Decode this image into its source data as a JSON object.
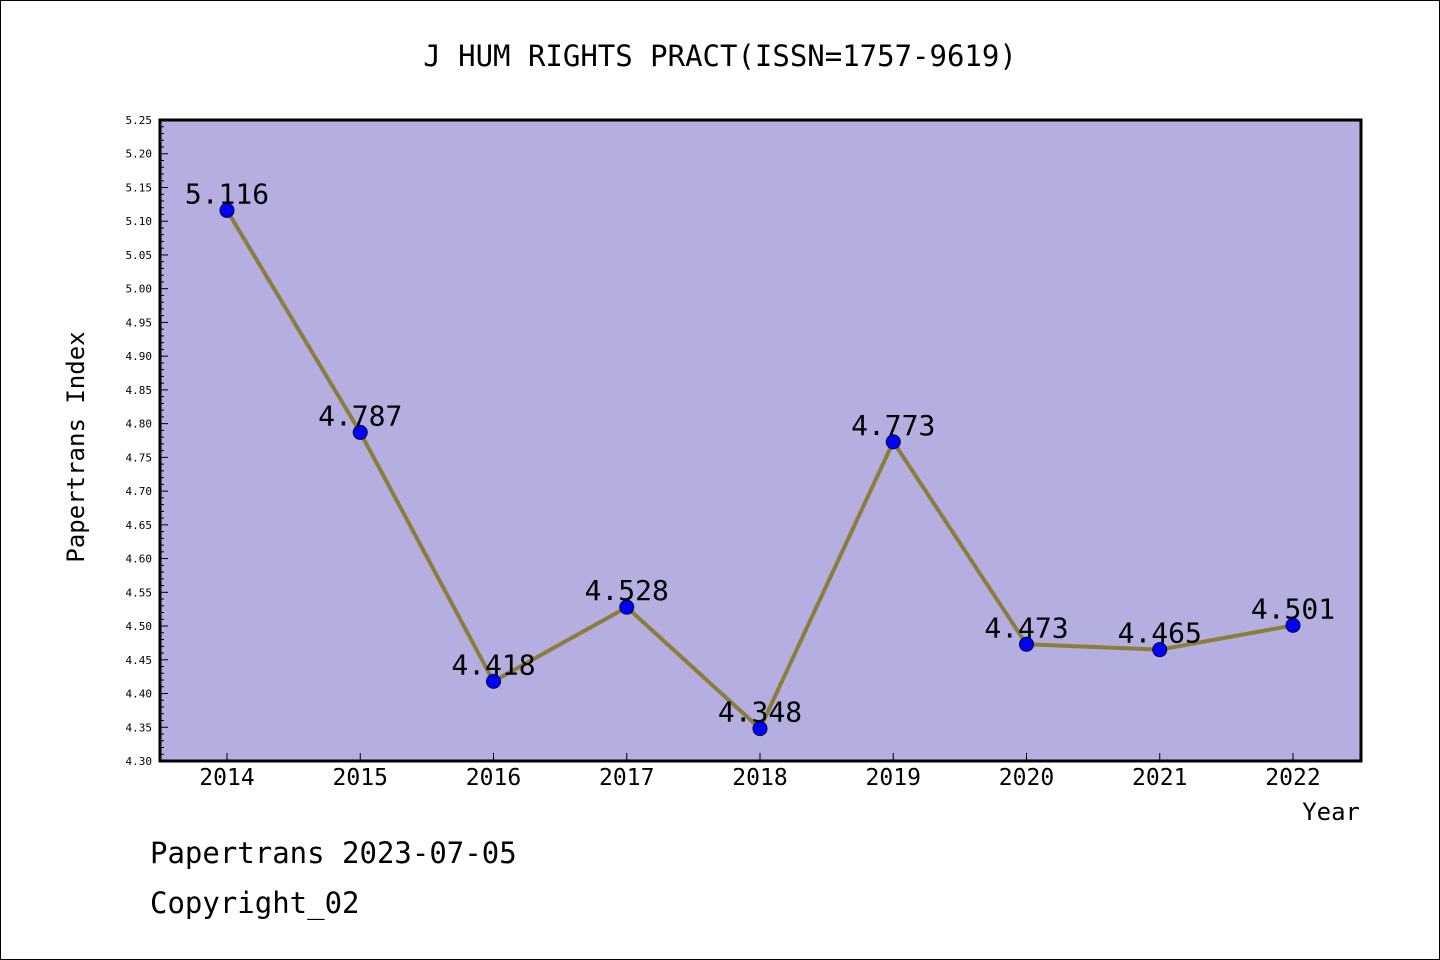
{
  "chart_data": {
    "type": "line",
    "title": "J HUM RIGHTS PRACT(ISSN=1757-9619)",
    "xlabel": "Year",
    "ylabel": "Papertrans Index",
    "categories": [
      "2014",
      "2015",
      "2016",
      "2017",
      "2018",
      "2019",
      "2020",
      "2021",
      "2022"
    ],
    "series": [
      {
        "values": [
          5.116,
          4.787,
          4.418,
          4.528,
          4.348,
          4.773,
          4.473,
          4.465,
          4.501
        ]
      }
    ],
    "data_labels": [
      "5.116",
      "4.787",
      "4.418",
      "4.528",
      "4.348",
      "4.773",
      "4.473",
      "4.465",
      "4.501"
    ],
    "ylim": [
      4.3,
      5.25
    ],
    "y_ticks": [
      "4.30",
      "4.35",
      "4.40",
      "4.45",
      "4.50",
      "4.55",
      "4.60",
      "4.65",
      "4.70",
      "4.75",
      "4.80",
      "4.85",
      "4.90",
      "4.95",
      "5.00",
      "5.05",
      "5.10",
      "5.15",
      "5.20",
      "5.25"
    ],
    "grid": false,
    "colors": {
      "plot_background": "#b4aee1",
      "line": "#8b7d3a",
      "marker": "#0000ff"
    }
  },
  "footer": {
    "source": "Papertrans 2023-07-05",
    "copyright": "Copyright_02"
  }
}
